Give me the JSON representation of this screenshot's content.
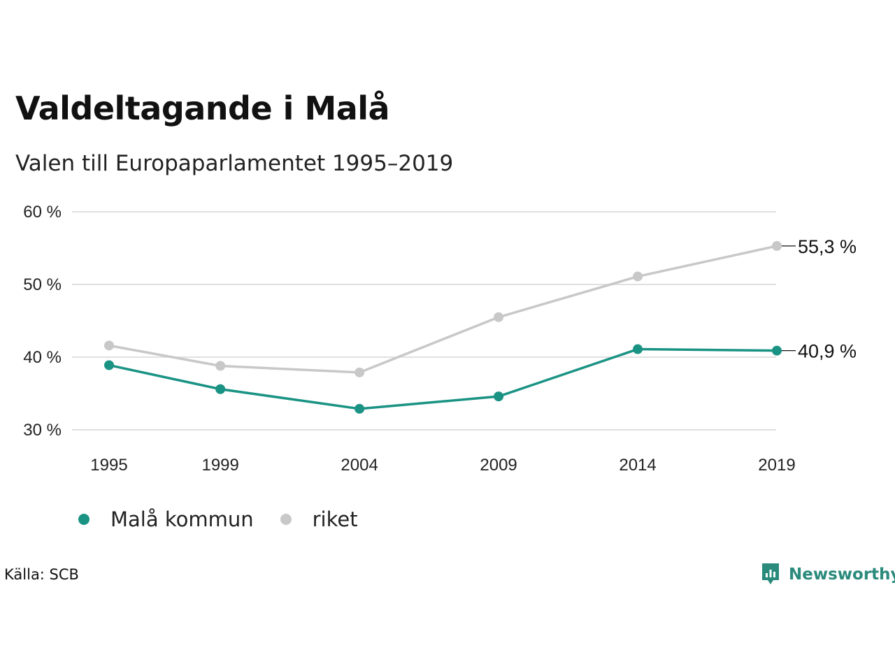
{
  "title": "Valdeltagande i Malå",
  "subtitle": "Valen till Europaparlamentet 1995–2019",
  "source": "Källa: SCB",
  "brand": {
    "name": "Newsworthy",
    "icon": "bar-chart-logo-icon",
    "color": "#2a8a7c"
  },
  "colors": {
    "mala": "#1a9384",
    "riket": "#c8c8c8",
    "grid": "#e0e0e0"
  },
  "chart_data": {
    "type": "line",
    "categories": [
      "1995",
      "1999",
      "2004",
      "2009",
      "2014",
      "2019"
    ],
    "x": [
      1995,
      1999,
      2004,
      2009,
      2014,
      2019
    ],
    "ylim": [
      30,
      60
    ],
    "yticks": [
      30,
      40,
      50,
      60
    ],
    "ytick_labels": [
      "30 %",
      "40 %",
      "50 %",
      "60 %"
    ],
    "grid": true,
    "legend_position": "bottom-left",
    "series": [
      {
        "name": "Malå kommun",
        "values": [
          38.9,
          35.6,
          32.9,
          34.6,
          41.1,
          40.9
        ],
        "end_label": "40,9 %"
      },
      {
        "name": "riket",
        "values": [
          41.6,
          38.8,
          37.9,
          45.5,
          51.1,
          55.3
        ],
        "end_label": "55,3 %"
      }
    ]
  }
}
